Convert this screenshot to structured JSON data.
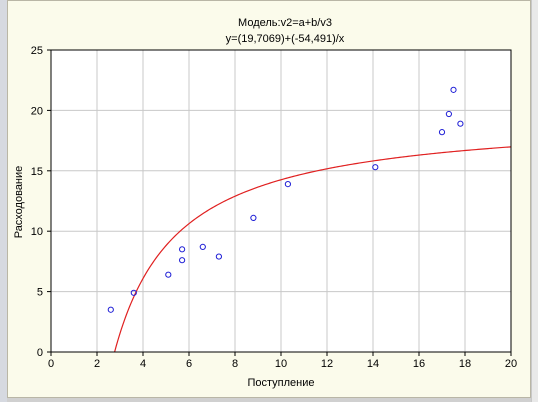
{
  "chart_data": {
    "type": "scatter",
    "title": "Модель:v2=a+b/v3",
    "subtitle": "y=(19,7069)+(-54,491)/x",
    "xlabel": "Поступление",
    "ylabel": "Расходование",
    "xlim": [
      0,
      20
    ],
    "ylim": [
      0,
      25
    ],
    "xticks": [
      "0",
      "2",
      "4",
      "6",
      "8",
      "10",
      "12",
      "14",
      "16",
      "18",
      "20"
    ],
    "yticks": [
      "0",
      "5",
      "10",
      "15",
      "20",
      "25"
    ],
    "grid": true,
    "points": [
      {
        "x": 2.6,
        "y": 3.5
      },
      {
        "x": 3.6,
        "y": 4.9
      },
      {
        "x": 5.1,
        "y": 6.4
      },
      {
        "x": 5.7,
        "y": 7.6
      },
      {
        "x": 5.7,
        "y": 8.5
      },
      {
        "x": 6.6,
        "y": 8.7
      },
      {
        "x": 7.3,
        "y": 7.9
      },
      {
        "x": 8.8,
        "y": 11.1
      },
      {
        "x": 10.3,
        "y": 13.9
      },
      {
        "x": 14.1,
        "y": 15.3
      },
      {
        "x": 17.0,
        "y": 18.2
      },
      {
        "x": 17.3,
        "y": 19.7
      },
      {
        "x": 17.5,
        "y": 21.7
      },
      {
        "x": 17.8,
        "y": 18.9
      }
    ],
    "fit": {
      "a": 19.7069,
      "b": -54.491
    },
    "colors": {
      "points": "#1f1fd6",
      "fit": "#e02020",
      "grid": "#c8c8c8",
      "plot_bg": "#ffffff"
    }
  }
}
